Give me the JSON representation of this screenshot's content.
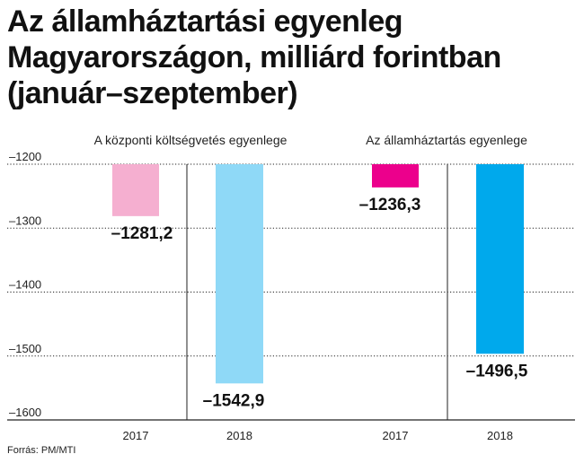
{
  "header": {
    "title_lines": [
      "Az államháztartási egyenleg",
      "Magyarországon, milliárd forintban",
      "(január–szeptember)"
    ]
  },
  "footer": {
    "source": "Forrás: PM/MTI"
  },
  "chart_data": {
    "type": "bar",
    "title": "Az államháztartási egyenleg Magyarországon, milliárd forintban (január–szeptember)",
    "ylim": [
      -1600,
      -1200
    ],
    "yticks": [
      -1200,
      -1300,
      -1400,
      -1500,
      -1600
    ],
    "ytick_labels": [
      "–1200",
      "–1300",
      "–1400",
      "–1500",
      "–1600"
    ],
    "grid": true,
    "groups": [
      {
        "name": "A központi költségvetés egyenlege",
        "categories": [
          "2017",
          "2018"
        ],
        "values": [
          -1281.2,
          -1542.9
        ],
        "labels": [
          "–1281,2",
          "–1542,9"
        ],
        "colors": [
          "#f5afd0",
          "#8fd9f7"
        ]
      },
      {
        "name": "Az államháztartás egyenlege",
        "categories": [
          "2017",
          "2018"
        ],
        "values": [
          -1236.3,
          -1496.5
        ],
        "labels": [
          "–1236,3",
          "–1496,5"
        ],
        "colors": [
          "#ec008c",
          "#00a9ec"
        ]
      }
    ]
  }
}
